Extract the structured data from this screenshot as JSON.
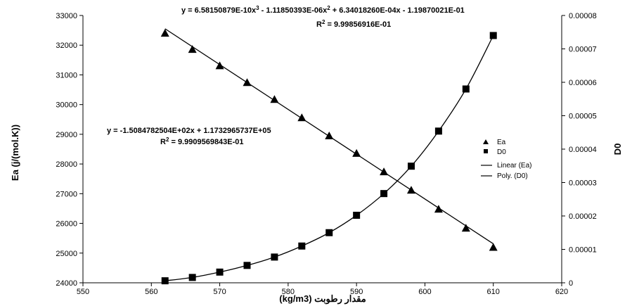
{
  "chart_data": {
    "type": "scatter",
    "xlabel": "مقدار رطوبت (kg/m3)",
    "ylabel_left": "Ea (j/(mol.K))",
    "ylabel_right": "D0",
    "xlim": [
      550,
      620
    ],
    "xticks": [
      "550",
      "560",
      "570",
      "580",
      "590",
      "600",
      "610",
      "620"
    ],
    "ylim_left": [
      24000,
      33000
    ],
    "yticks_left": [
      "24000",
      "25000",
      "26000",
      "27000",
      "28000",
      "29000",
      "30000",
      "31000",
      "32000",
      "33000"
    ],
    "ylim_right": [
      0,
      8e-05
    ],
    "yticks_right": [
      "0",
      "0.00001",
      "0.00002",
      "0.00003",
      "0.00004",
      "0.00005",
      "0.00006",
      "0.00007",
      "0.00008"
    ],
    "x": [
      562,
      566,
      570,
      574,
      578,
      582,
      586,
      590,
      594,
      598,
      602,
      606,
      610
    ],
    "series": [
      {
        "name": "Ea",
        "axis": "left",
        "marker": "triangle",
        "values": [
          32405,
          31860,
          31310,
          30745,
          30175,
          29560,
          28950,
          28360,
          27740,
          27120,
          26480,
          25840,
          25195
        ]
      },
      {
        "name": "D0",
        "axis": "right",
        "marker": "square",
        "values": [
          6e-07,
          1.6e-06,
          3.2e-06,
          5.2e-06,
          7.7e-06,
          1.1e-05,
          1.5e-05,
          2.02e-05,
          2.67e-05,
          3.49e-05,
          4.54e-05,
          5.8e-05,
          7.4e-05
        ]
      }
    ],
    "trendlines": [
      {
        "name": "Linear (Ea)",
        "type": "linear",
        "axis": "left",
        "coef": [
          -150.84782504,
          117329.65737
        ]
      },
      {
        "name": "Poly. (D0)",
        "type": "poly3",
        "axis": "right",
        "coef": [
          6.58150879e-10,
          -1.11850393e-06,
          0.00063401826,
          -0.119870021
        ]
      }
    ],
    "legend": [
      "Ea",
      "D0",
      "Linear (Ea)",
      "Poly. (D0)"
    ],
    "legend_position": "right",
    "grid": false,
    "annotations": {
      "poly_eq_prefix": "y = 6.58150879E-10x",
      "poly_eq_sup1": "3",
      "poly_eq_mid": " - 1.11850393E-06x",
      "poly_eq_sup2": "2",
      "poly_eq_rest": " + 6.34018260E-04x - 1.19870021E-01",
      "poly_r2_prefix": "R",
      "poly_r2_sup": "2",
      "poly_r2_value": " = 9.99856916E-01",
      "lin_eq": "y = -1.5084782504E+02x + 1.1732965737E+05",
      "lin_r2_prefix": "R",
      "lin_r2_sup": "2",
      "lin_r2_value": " = 9.9909569843E-01"
    }
  }
}
